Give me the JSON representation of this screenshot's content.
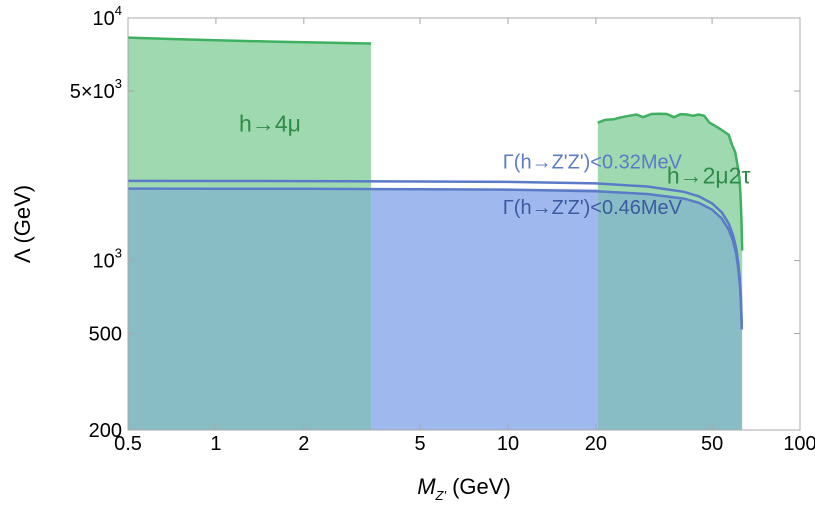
{
  "chart_data": {
    "type": "area",
    "title": "",
    "xlabel": "M_Z' (GeV)",
    "xlabel_main": "M",
    "xlabel_sub": "Z'",
    "xlabel_rest": " (GeV)",
    "ylabel": "Λ (GeV)",
    "x_scale": "log",
    "y_scale": "log",
    "xlim": [
      0.5,
      100
    ],
    "ylim": [
      200,
      10000
    ],
    "grid": false,
    "x_ticks": [
      {
        "value": 0.5,
        "label": "0.5"
      },
      {
        "value": 1,
        "label": "1"
      },
      {
        "value": 2,
        "label": "2"
      },
      {
        "value": 5,
        "label": "5"
      },
      {
        "value": 10,
        "label": "10"
      },
      {
        "value": 20,
        "label": "20"
      },
      {
        "value": 50,
        "label": "50"
      },
      {
        "value": 100,
        "label": "100"
      }
    ],
    "y_ticks": [
      {
        "value": 200,
        "label": "200",
        "base": "",
        "exp": ""
      },
      {
        "value": 500,
        "label": "500",
        "base": "",
        "exp": ""
      },
      {
        "value": 1000,
        "label": "",
        "base": "10",
        "exp": "3"
      },
      {
        "value": 5000,
        "label": "",
        "base": "5×10",
        "exp": "3"
      },
      {
        "value": 10000,
        "label": "",
        "base": "10",
        "exp": "4"
      }
    ],
    "series": [
      {
        "key": "h4mu",
        "fill": "#9fd9b0",
        "stroke": "#3fb060",
        "x": [
          0.5,
          0.75,
          1.0,
          1.5,
          2.0,
          2.5,
          3.0,
          3.4
        ],
        "y": [
          8300,
          8180,
          8100,
          8000,
          7950,
          7900,
          7870,
          7850
        ]
      },
      {
        "key": "h2mu2tau",
        "fill": "#9fd9b0",
        "stroke": "#3fb060",
        "x": [
          20.3,
          21.5,
          23,
          24.5,
          26,
          27.5,
          29,
          31,
          33,
          35,
          37,
          39,
          41,
          43,
          45,
          47,
          49,
          51,
          53,
          55,
          57,
          58.5,
          60,
          61,
          62,
          62.5,
          63,
          63.4
        ],
        "y": [
          3700,
          3800,
          3820,
          3900,
          3950,
          4000,
          3900,
          4020,
          4030,
          4020,
          3900,
          4010,
          4000,
          3950,
          4000,
          3950,
          3700,
          3600,
          3500,
          3400,
          3300,
          3000,
          2800,
          2500,
          2200,
          1900,
          1500,
          1100
        ]
      },
      {
        "key": "gamma046",
        "fill": "#6f9ce0",
        "fill_opacity": 0.45,
        "stroke": "#5b7bc8",
        "x": [
          0.5,
          1,
          2,
          5,
          10,
          20,
          30,
          40,
          45,
          50,
          54,
          57,
          59,
          60.5,
          61.5,
          62.2,
          62.7,
          63.0,
          63.2
        ],
        "y": [
          1980,
          1978,
          1975,
          1968,
          1960,
          1930,
          1880,
          1800,
          1730,
          1620,
          1490,
          1340,
          1200,
          1060,
          920,
          800,
          680,
          580,
          520
        ]
      },
      {
        "key": "gamma032",
        "fill": "none",
        "stroke": "#5b7bc8",
        "x": [
          0.5,
          1,
          2,
          5,
          10,
          20,
          30,
          40,
          45,
          50,
          54,
          57,
          59,
          60.5,
          61.5,
          62.2,
          62.7,
          63.0,
          63.2
        ],
        "y": [
          2130,
          2128,
          2125,
          2118,
          2110,
          2080,
          2020,
          1920,
          1840,
          1720,
          1580,
          1420,
          1270,
          1120,
          970,
          840,
          720,
          610,
          540
        ]
      }
    ],
    "regions": [
      {
        "key": "pale_band",
        "fill": "#c7d0f7",
        "x": [
          3.4,
          20.3
        ],
        "y_top": 1975
      }
    ],
    "annotations": [
      {
        "key": "label_h4mu",
        "text": "h→4μ",
        "x": 1.2,
        "y": 3400,
        "color": "#2e8b4a",
        "size": "big"
      },
      {
        "key": "label_h2mu2tau",
        "text": "h→2μ2τ",
        "x": 35,
        "y": 2080,
        "color": "#2e8b4a",
        "size": "big"
      },
      {
        "key": "label_g032",
        "text": "Γ(h→Z'Z')<0.32MeV",
        "x": 9.6,
        "y": 2390,
        "color": "#5b7bc8",
        "size": "normal"
      },
      {
        "key": "label_g046",
        "text": "Γ(h→Z'Z')<0.46MeV",
        "x": 9.6,
        "y": 1555,
        "color": "#3c5aa0",
        "size": "normal"
      }
    ]
  }
}
